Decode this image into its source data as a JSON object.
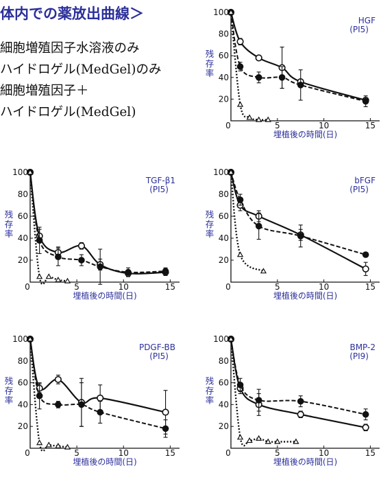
{
  "title": "体内での薬放出曲線＞",
  "legend": [
    "細胞増殖因子水溶液のみ",
    "ハイドロゲル(MedGel)のみ",
    "細胞増殖因子＋",
    "ハイドロゲル(MedGel)"
  ],
  "chart_data": [
    {
      "type": "line",
      "label": "HGF",
      "sublabel": "(PI5)",
      "xlabel": "埋植後の時間(日)",
      "ylabel": "残存率",
      "xlim": [
        0,
        16
      ],
      "ylim": [
        0,
        100
      ],
      "xticks": [
        "0",
        "5",
        "10",
        "15"
      ],
      "yticks": [
        "20",
        "40",
        "60",
        "80",
        "100"
      ],
      "series": [
        {
          "marker": "open_circle",
          "x": [
            0,
            1,
            3,
            5.5,
            7.5,
            14.5
          ],
          "y": [
            100,
            73,
            58,
            49,
            36,
            19
          ],
          "err": [
            0,
            3,
            0,
            19,
            0,
            0
          ]
        },
        {
          "marker": "filled_circle",
          "x": [
            0,
            1,
            3,
            5.5,
            7.5,
            14.5
          ],
          "y": [
            100,
            50,
            40,
            40,
            33,
            18
          ],
          "err": [
            0,
            4,
            5,
            10,
            14,
            5
          ]
        },
        {
          "marker": "open_triangle",
          "x": [
            0,
            1,
            2,
            3,
            4
          ],
          "y": [
            100,
            15,
            3,
            1,
            1
          ],
          "err": [
            0,
            0,
            0,
            0,
            0
          ]
        }
      ]
    },
    {
      "type": "line",
      "label": "TGF-β1",
      "sublabel": "(PI5)",
      "xlabel": "埋植後の時間(日)",
      "ylabel": "残存率",
      "xlim": [
        0,
        16
      ],
      "ylim": [
        0,
        100
      ],
      "xticks": [
        "0",
        "5",
        "10",
        "15"
      ],
      "yticks": [
        "20",
        "40",
        "60",
        "80",
        "100"
      ],
      "series": [
        {
          "marker": "open_circle",
          "x": [
            0,
            1,
            3,
            5.5,
            7.5,
            10.5,
            14.5
          ],
          "y": [
            100,
            42,
            27,
            33,
            16,
            8,
            9
          ],
          "err": [
            0,
            6,
            5,
            3,
            5,
            3,
            3
          ]
        },
        {
          "marker": "filled_circle",
          "x": [
            0,
            1,
            3,
            5.5,
            7.5,
            10.5,
            14.5
          ],
          "y": [
            100,
            38,
            23,
            20,
            14,
            9,
            10
          ],
          "err": [
            0,
            12,
            8,
            5,
            16,
            4,
            3
          ]
        },
        {
          "marker": "open_triangle",
          "x": [
            0,
            1,
            2,
            3,
            4
          ],
          "y": [
            100,
            5,
            5,
            2,
            1
          ],
          "err": [
            0,
            0,
            0,
            0,
            0
          ]
        }
      ]
    },
    {
      "type": "line",
      "label": "bFGF",
      "sublabel": "(PI5)",
      "xlabel": "埋植後の時間(日)",
      "ylabel": "残存率",
      "xlim": [
        0,
        16
      ],
      "ylim": [
        0,
        100
      ],
      "xticks": [
        "0",
        "5",
        "10",
        "15"
      ],
      "yticks": [
        "20",
        "40",
        "60",
        "80",
        "100"
      ],
      "series": [
        {
          "marker": "open_circle",
          "x": [
            0,
            1,
            3,
            7.5,
            14.5
          ],
          "y": [
            100,
            70,
            60,
            43,
            12
          ],
          "err": [
            0,
            5,
            5,
            5,
            6
          ]
        },
        {
          "marker": "filled_circle",
          "x": [
            0,
            1,
            3,
            7.5,
            14.5
          ],
          "y": [
            100,
            75,
            51,
            42,
            25
          ],
          "err": [
            0,
            5,
            12,
            10,
            2
          ]
        },
        {
          "marker": "open_triangle",
          "x": [
            0,
            1,
            3.5
          ],
          "y": [
            100,
            25,
            10
          ],
          "err": [
            0,
            0,
            0
          ]
        }
      ]
    },
    {
      "type": "line",
      "label": "PDGF-BB",
      "sublabel": "(PI5)",
      "xlabel": "埋植後の時間(日)",
      "ylabel": "残存率",
      "xlim": [
        0,
        16
      ],
      "ylim": [
        0,
        100
      ],
      "xticks": [
        "0",
        "5",
        "10",
        "15"
      ],
      "yticks": [
        "20",
        "40",
        "60",
        "80",
        "100"
      ],
      "series": [
        {
          "marker": "open_circle",
          "x": [
            0,
            1,
            3,
            5.5,
            7.5,
            14.5
          ],
          "y": [
            100,
            55,
            63,
            42,
            46,
            33
          ],
          "err": [
            0,
            4,
            4,
            22,
            12,
            20
          ]
        },
        {
          "marker": "filled_circle",
          "x": [
            0,
            1,
            3,
            5.5,
            7.5,
            14.5
          ],
          "y": [
            100,
            48,
            40,
            40,
            33,
            18
          ],
          "err": [
            0,
            12,
            3,
            20,
            10,
            8
          ]
        },
        {
          "marker": "open_triangle",
          "x": [
            0,
            1,
            2,
            3,
            4
          ],
          "y": [
            100,
            5,
            3,
            2,
            1
          ],
          "err": [
            0,
            0,
            0,
            0,
            0
          ]
        }
      ]
    },
    {
      "type": "line",
      "label": "BMP-2",
      "sublabel": "(PI9)",
      "xlabel": "埋植後の時間(日)",
      "ylabel": "残存率",
      "xlim": [
        0,
        16
      ],
      "ylim": [
        0,
        100
      ],
      "xticks": [
        "0",
        "5",
        "10",
        "15"
      ],
      "yticks": [
        "20",
        "40",
        "60",
        "80",
        "100"
      ],
      "series": [
        {
          "marker": "open_circle",
          "x": [
            0,
            1,
            3,
            7.5,
            14.5
          ],
          "y": [
            100,
            55,
            40,
            31,
            19
          ],
          "err": [
            0,
            5,
            10,
            3,
            3
          ]
        },
        {
          "marker": "filled_circle",
          "x": [
            0,
            1,
            3,
            7.5,
            14.5
          ],
          "y": [
            100,
            58,
            44,
            43,
            31
          ],
          "err": [
            0,
            6,
            10,
            5,
            5
          ]
        },
        {
          "marker": "open_triangle",
          "x": [
            0,
            1,
            2,
            3,
            4,
            5,
            7
          ],
          "y": [
            100,
            10,
            7,
            9,
            6,
            6,
            6
          ],
          "err": [
            0,
            0,
            0,
            0,
            0,
            0,
            0
          ]
        }
      ]
    }
  ]
}
